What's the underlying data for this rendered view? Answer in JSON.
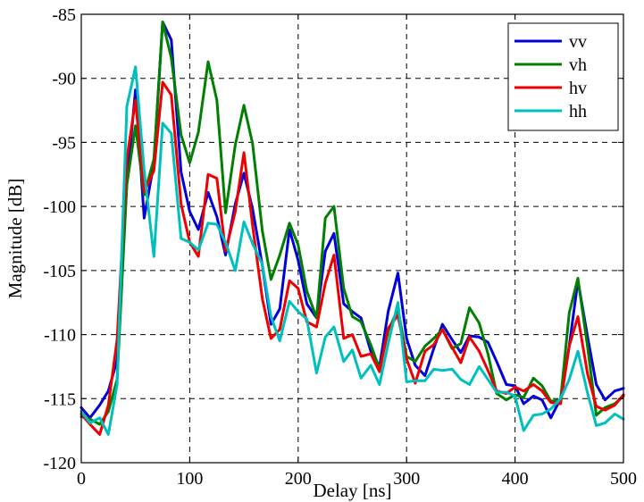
{
  "chart_data": {
    "type": "line",
    "title": "",
    "xlabel": "Delay [ns]",
    "ylabel": "Magnitude [dB]",
    "xlim": [
      0,
      500
    ],
    "ylim": [
      -120,
      -85
    ],
    "xticks": [
      0,
      100,
      200,
      300,
      400,
      500
    ],
    "yticks": [
      -120,
      -115,
      -110,
      -105,
      -100,
      -95,
      -90,
      -85
    ],
    "xtick_labels": [
      "0",
      "100",
      "200",
      "300",
      "400",
      "500"
    ],
    "ytick_labels": [
      "-120",
      "-115",
      "-110",
      "-105",
      "-100",
      "-95",
      "-90",
      "-85"
    ],
    "grid": true,
    "legend_position": "top-right",
    "x": [
      0,
      8,
      17,
      25,
      33,
      42,
      50,
      58,
      67,
      75,
      83,
      92,
      100,
      108,
      117,
      125,
      133,
      142,
      150,
      158,
      167,
      175,
      183,
      192,
      200,
      208,
      217,
      225,
      233,
      242,
      250,
      258,
      267,
      275,
      283,
      292,
      300,
      308,
      317,
      325,
      333,
      342,
      350,
      358,
      367,
      375,
      383,
      392,
      400,
      408,
      417,
      425,
      433,
      442,
      450,
      458,
      467,
      475,
      483,
      492,
      500
    ],
    "series": [
      {
        "name": "vv",
        "color": "#0000d8",
        "values": [
          -115.7,
          -116.5,
          -115.5,
          -114.4,
          -112.0,
          -98.2,
          -90.9,
          -100.9,
          -96.6,
          -85.6,
          -87.0,
          -97.3,
          -100.4,
          -101.8,
          -98.9,
          -100.8,
          -103.8,
          -99.8,
          -97.4,
          -100.2,
          -104.6,
          -109.2,
          -108.0,
          -101.8,
          -104.2,
          -107.6,
          -108.7,
          -103.5,
          -102.1,
          -107.6,
          -108.2,
          -108.7,
          -111.3,
          -112.5,
          -108.2,
          -105.2,
          -110.3,
          -112.4,
          -113.2,
          -111.1,
          -109.2,
          -110.4,
          -111.4,
          -110.1,
          -110.2,
          -110.6,
          -112.1,
          -113.9,
          -114.0,
          -115.4,
          -114.8,
          -115.1,
          -116.5,
          -115.0,
          -110.9,
          -105.8,
          -110.2,
          -113.9,
          -115.1,
          -114.4,
          -114.2
        ]
      },
      {
        "name": "vh",
        "color": "#007f00",
        "values": [
          -116.4,
          -116.6,
          -117.0,
          -116.0,
          -113.5,
          -98.3,
          -93.7,
          -99.1,
          -96.3,
          -85.6,
          -88.4,
          -94.4,
          -96.6,
          -94.2,
          -88.7,
          -91.7,
          -100.5,
          -95.2,
          -92.1,
          -95.1,
          -101.9,
          -105.7,
          -103.8,
          -101.3,
          -103.0,
          -106.6,
          -108.7,
          -100.9,
          -100.0,
          -106.4,
          -108.6,
          -109.0,
          -110.8,
          -112.7,
          -109.7,
          -108.0,
          -111.7,
          -112.1,
          -110.9,
          -110.3,
          -109.6,
          -111.1,
          -110.7,
          -107.9,
          -109.1,
          -111.5,
          -114.6,
          -115.1,
          -114.7,
          -114.9,
          -113.4,
          -114.0,
          -115.2,
          -115.1,
          -108.3,
          -105.6,
          -111.0,
          -116.3,
          -115.7,
          -115.4,
          -114.8
        ]
      },
      {
        "name": "hv",
        "color": "#ee0000",
        "values": [
          -116.2,
          -117.0,
          -117.8,
          -115.5,
          -110.4,
          -96.3,
          -91.7,
          -98.9,
          -97.2,
          -90.3,
          -91.3,
          -99.8,
          -102.8,
          -103.9,
          -97.5,
          -97.8,
          -103.5,
          -100.4,
          -95.8,
          -101.5,
          -107.2,
          -110.3,
          -109.6,
          -105.8,
          -106.4,
          -109.0,
          -109.4,
          -106.0,
          -103.8,
          -110.3,
          -110.0,
          -111.7,
          -111.5,
          -112.9,
          -109.5,
          -108.5,
          -111.9,
          -113.8,
          -111.3,
          -110.8,
          -109.6,
          -111.0,
          -112.2,
          -110.2,
          -111.3,
          -112.8,
          -114.4,
          -114.6,
          -114.1,
          -114.4,
          -113.9,
          -114.4,
          -115.3,
          -115.4,
          -110.9,
          -108.6,
          -113.1,
          -115.6,
          -115.9,
          -115.5,
          -114.7
        ]
      },
      {
        "name": "hh",
        "color": "#00bfbf",
        "values": [
          -116.0,
          -116.9,
          -116.5,
          -117.8,
          -113.9,
          -92.2,
          -89.1,
          -97.2,
          -103.9,
          -93.5,
          -94.3,
          -102.5,
          -102.8,
          -103.4,
          -101.3,
          -101.4,
          -102.8,
          -105.0,
          -101.2,
          -102.9,
          -104.5,
          -108.6,
          -110.5,
          -107.4,
          -108.2,
          -108.8,
          -113.0,
          -110.2,
          -109.4,
          -112.1,
          -111.2,
          -113.4,
          -112.4,
          -113.9,
          -110.7,
          -107.5,
          -113.7,
          -113.6,
          -113.6,
          -112.7,
          -112.8,
          -112.7,
          -113.5,
          -113.9,
          -112.5,
          -113.5,
          -114.5,
          -114.5,
          -114.8,
          -117.5,
          -116.3,
          -116.2,
          -115.8,
          -115.0,
          -113.5,
          -111.3,
          -114.6,
          -117.1,
          -116.9,
          -116.2,
          -116.6
        ]
      }
    ]
  }
}
